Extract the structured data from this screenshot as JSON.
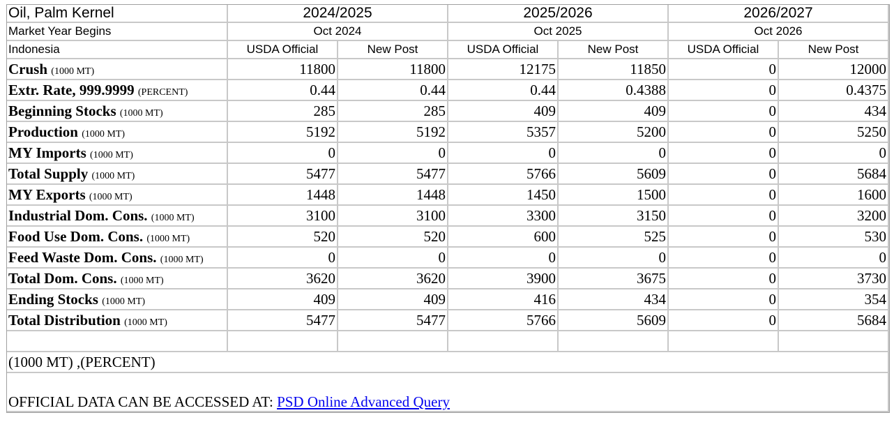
{
  "header": {
    "commodity": "Oil, Palm Kernel",
    "market_year_label": "Market Year Begins",
    "country": "Indonesia",
    "years": [
      {
        "year": "2024/2025",
        "begins": "Oct 2024"
      },
      {
        "year": "2025/2026",
        "begins": "Oct 2025"
      },
      {
        "year": "2026/2027",
        "begins": "Oct 2026"
      }
    ],
    "col_labels": [
      "USDA Official",
      "New Post",
      "USDA Official",
      "New Post",
      "USDA Official",
      "New Post"
    ]
  },
  "rows": [
    {
      "label": "Crush",
      "unit": "(1000 MT)",
      "values": [
        "11800",
        "11800",
        "12175",
        "11850",
        "0",
        "12000"
      ]
    },
    {
      "label": "Extr. Rate, 999.9999",
      "unit": "(PERCENT)",
      "values": [
        "0.44",
        "0.44",
        "0.44",
        "0.4388",
        "0",
        "0.4375"
      ]
    },
    {
      "label": "Beginning Stocks",
      "unit": "(1000 MT)",
      "values": [
        "285",
        "285",
        "409",
        "409",
        "0",
        "434"
      ]
    },
    {
      "label": "Production",
      "unit": "(1000 MT)",
      "values": [
        "5192",
        "5192",
        "5357",
        "5200",
        "0",
        "5250"
      ]
    },
    {
      "label": "MY Imports",
      "unit": "(1000 MT)",
      "values": [
        "0",
        "0",
        "0",
        "0",
        "0",
        "0"
      ]
    },
    {
      "label": "Total Supply",
      "unit": "(1000 MT)",
      "values": [
        "5477",
        "5477",
        "5766",
        "5609",
        "0",
        "5684"
      ]
    },
    {
      "label": "MY Exports",
      "unit": "(1000 MT)",
      "values": [
        "1448",
        "1448",
        "1450",
        "1500",
        "0",
        "1600"
      ]
    },
    {
      "label": "Industrial Dom. Cons.",
      "unit": "(1000 MT)",
      "values": [
        "3100",
        "3100",
        "3300",
        "3150",
        "0",
        "3200"
      ]
    },
    {
      "label": "Food Use Dom. Cons.",
      "unit": "(1000 MT)",
      "values": [
        "520",
        "520",
        "600",
        "525",
        "0",
        "530"
      ]
    },
    {
      "label": "Feed Waste Dom. Cons.",
      "unit": "(1000 MT)",
      "values": [
        "0",
        "0",
        "0",
        "0",
        "0",
        "0"
      ]
    },
    {
      "label": "Total Dom. Cons.",
      "unit": "(1000 MT)",
      "values": [
        "3620",
        "3620",
        "3900",
        "3675",
        "0",
        "3730"
      ]
    },
    {
      "label": "Ending Stocks",
      "unit": "(1000 MT)",
      "values": [
        "409",
        "409",
        "416",
        "434",
        "0",
        "354"
      ]
    },
    {
      "label": "Total Distribution",
      "unit": "(1000 MT)",
      "values": [
        "5477",
        "5477",
        "5766",
        "5609",
        "0",
        "5684"
      ]
    }
  ],
  "units_note": "(1000 MT) ,(PERCENT)",
  "footer": {
    "text": "OFFICIAL DATA CAN BE ACCESSED AT: ",
    "link": "PSD Online Advanced Query"
  }
}
